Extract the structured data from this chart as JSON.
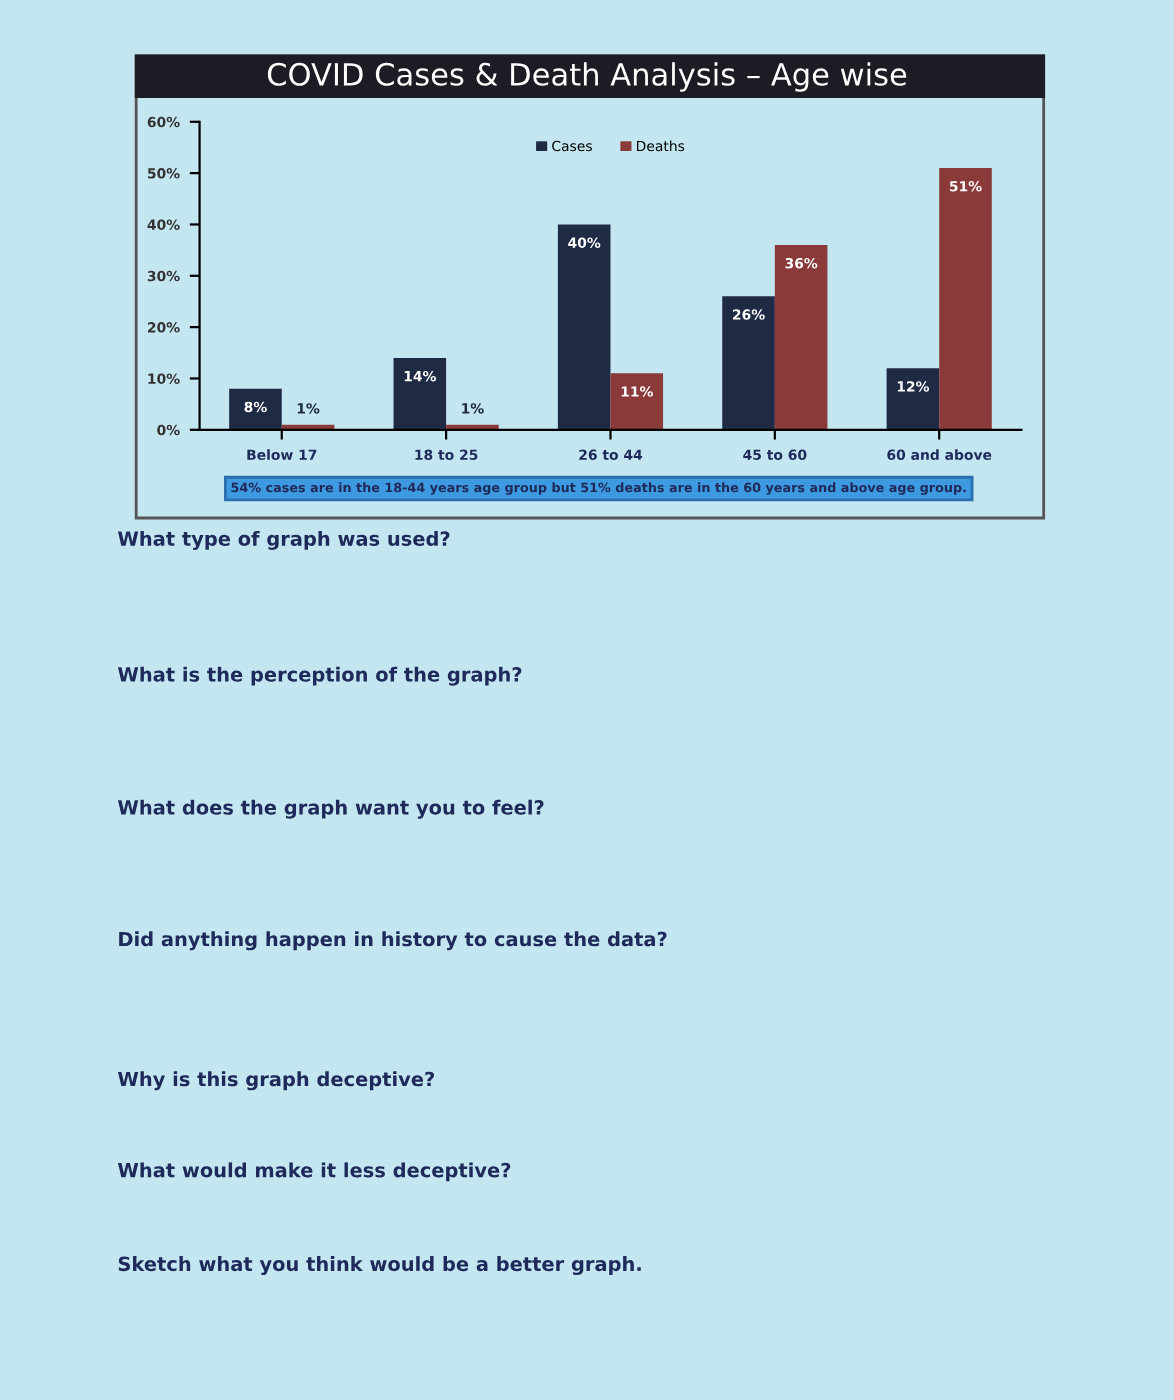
{
  "chart_data": {
    "type": "bar",
    "title": "COVID Cases & Death Analysis – Age wise",
    "categories": [
      "Below 17",
      "18 to 25",
      "26 to 44",
      "45 to 60",
      "60 and above"
    ],
    "series": [
      {
        "name": "Cases",
        "color": "#1f2a44",
        "values": [
          8,
          14,
          40,
          26,
          12
        ]
      },
      {
        "name": "Deaths",
        "color": "#8b3a3a",
        "values": [
          1,
          1,
          11,
          36,
          51
        ]
      }
    ],
    "ylim": [
      0,
      60
    ],
    "yticks": [
      {
        "value": 0,
        "label": "0%"
      },
      {
        "value": 10,
        "label": "10%"
      },
      {
        "value": 20,
        "label": "20%"
      },
      {
        "value": 30,
        "label": "30%"
      },
      {
        "value": 40,
        "label": "40%"
      },
      {
        "value": 50,
        "label": "50%"
      },
      {
        "value": 60,
        "label": "60%"
      }
    ],
    "value_labels": [
      [
        "8%",
        "14%",
        "40%",
        "26%",
        "12%"
      ],
      [
        "1%",
        "1%",
        "11%",
        "36%",
        "51%"
      ]
    ],
    "legend": "top",
    "grid": false,
    "annotations": [
      "54% cases are in the 18-44 years age group but 51% deaths are in the 60 years and above age group.",
      "What type of graph was used?",
      "What is the perception of the graph?",
      "What does the graph want you to feel?",
      "Did anything happen in history to cause the data?",
      "Why is this graph deceptive?",
      "What would make it less deceptive?",
      "Sketch what you think would be a better graph."
    ]
  }
}
